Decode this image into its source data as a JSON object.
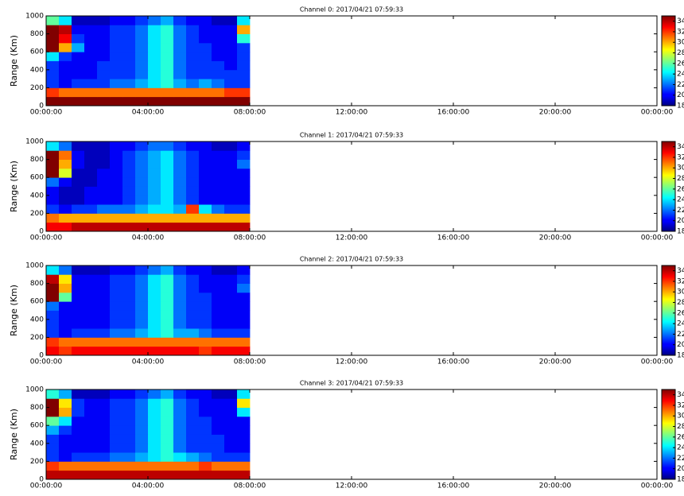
{
  "chart_data": [
    {
      "type": "heatmap",
      "title": "Channel 0: 2017/04/21 07:59:33",
      "ylabel": "Range (Km)",
      "colormap": "jet",
      "xlim": [
        0,
        24
      ],
      "xticks": [
        {
          "value": 0,
          "label": "00:00:00"
        },
        {
          "value": 4,
          "label": "04:00:00"
        },
        {
          "value": 8,
          "label": "08:00:00"
        },
        {
          "value": 12,
          "label": "12:00:00"
        },
        {
          "value": 16,
          "label": "16:00:00"
        },
        {
          "value": 20,
          "label": "20:00:00"
        },
        {
          "value": 24,
          "label": "00:00:00"
        }
      ],
      "ylim": [
        0,
        1000
      ],
      "yticks": [
        0,
        200,
        400,
        600,
        800,
        1000
      ],
      "clim": [
        18,
        35
      ],
      "colorbar_ticks": [
        18,
        20,
        22,
        24,
        26,
        28,
        30,
        32,
        34
      ],
      "x_bins": [
        0,
        0.5,
        1,
        1.5,
        2,
        2.5,
        3,
        3.5,
        4,
        4.5,
        5,
        5.5,
        6,
        6.5,
        7,
        7.5,
        8
      ],
      "y_bins": [
        0,
        100,
        200,
        300,
        400,
        500,
        600,
        700,
        800,
        900,
        1000
      ],
      "values": [
        [
          35,
          35,
          35,
          35,
          35,
          35,
          35,
          35,
          35,
          35,
          35,
          35,
          35,
          35,
          35,
          35
        ],
        [
          32,
          31,
          31,
          31,
          31,
          31,
          31,
          31,
          31,
          31,
          31,
          31,
          31,
          31,
          32,
          32
        ],
        [
          21,
          20,
          21,
          21,
          21,
          22,
          22,
          23,
          24,
          25,
          23,
          22,
          23,
          22,
          21,
          21
        ],
        [
          21,
          20,
          20,
          20,
          21,
          21,
          21,
          22,
          24,
          25,
          22,
          21,
          21,
          21,
          21,
          21
        ],
        [
          21,
          20,
          20,
          20,
          21,
          21,
          21,
          22,
          24,
          25,
          22,
          21,
          21,
          21,
          20,
          21
        ],
        [
          24,
          21,
          20,
          20,
          20,
          21,
          21,
          22,
          24,
          25,
          22,
          21,
          21,
          20,
          20,
          21
        ],
        [
          35,
          30,
          23,
          20,
          20,
          21,
          21,
          22,
          24,
          25,
          22,
          21,
          21,
          20,
          20,
          21
        ],
        [
          35,
          33,
          21,
          20,
          20,
          21,
          21,
          22,
          24,
          25,
          22,
          21,
          20,
          20,
          20,
          25
        ],
        [
          35,
          34,
          20,
          20,
          20,
          21,
          21,
          22,
          24,
          25,
          22,
          21,
          20,
          20,
          20,
          30
        ],
        [
          26,
          24,
          19,
          19,
          19,
          20,
          20,
          21,
          22,
          23,
          21,
          20,
          20,
          19,
          19,
          24
        ]
      ]
    },
    {
      "type": "heatmap",
      "title": "Channel 1: 2017/04/21 07:59:33",
      "ylabel": "Range (Km)",
      "colormap": "jet",
      "xlim": [
        0,
        24
      ],
      "xticks": [
        {
          "value": 0,
          "label": "00:00:00"
        },
        {
          "value": 4,
          "label": "04:00:00"
        },
        {
          "value": 8,
          "label": "08:00:00"
        },
        {
          "value": 12,
          "label": "12:00:00"
        },
        {
          "value": 16,
          "label": "16:00:00"
        },
        {
          "value": 20,
          "label": "20:00:00"
        },
        {
          "value": 24,
          "label": "00:00:00"
        }
      ],
      "ylim": [
        0,
        1000
      ],
      "yticks": [
        0,
        200,
        400,
        600,
        800,
        1000
      ],
      "clim": [
        18,
        35
      ],
      "colorbar_ticks": [
        18,
        20,
        22,
        24,
        26,
        28,
        30,
        32,
        34
      ],
      "x_bins": [
        0,
        0.5,
        1,
        1.5,
        2,
        2.5,
        3,
        3.5,
        4,
        4.5,
        5,
        5.5,
        6,
        6.5,
        7,
        7.5,
        8
      ],
      "y_bins": [
        0,
        100,
        200,
        300,
        400,
        500,
        600,
        700,
        800,
        900,
        1000
      ],
      "values": [
        [
          33,
          33,
          34,
          34,
          34,
          34,
          34,
          34,
          34,
          34,
          34,
          34,
          34,
          34,
          34,
          34
        ],
        [
          31,
          30,
          30,
          30,
          30,
          30,
          30,
          30,
          30,
          30,
          30,
          30,
          30,
          30,
          30,
          30
        ],
        [
          21,
          20,
          21,
          21,
          22,
          22,
          22,
          23,
          24,
          24,
          23,
          32,
          24,
          22,
          21,
          21
        ],
        [
          20,
          19,
          19,
          20,
          20,
          20,
          21,
          22,
          23,
          24,
          22,
          21,
          20,
          20,
          20,
          20
        ],
        [
          20,
          19,
          19,
          20,
          20,
          20,
          21,
          22,
          23,
          24,
          22,
          21,
          20,
          20,
          20,
          20
        ],
        [
          22,
          20,
          19,
          19,
          20,
          20,
          21,
          22,
          23,
          24,
          22,
          21,
          20,
          20,
          20,
          20
        ],
        [
          35,
          28,
          19,
          19,
          20,
          20,
          21,
          22,
          23,
          24,
          22,
          21,
          20,
          20,
          20,
          20
        ],
        [
          35,
          30,
          20,
          19,
          19,
          20,
          21,
          22,
          23,
          24,
          22,
          21,
          20,
          20,
          20,
          22
        ],
        [
          35,
          31,
          20,
          19,
          19,
          20,
          21,
          22,
          23,
          24,
          22,
          21,
          20,
          20,
          20,
          21
        ],
        [
          24,
          22,
          19,
          19,
          19,
          20,
          20,
          21,
          22,
          22,
          21,
          20,
          20,
          19,
          19,
          20
        ]
      ]
    },
    {
      "type": "heatmap",
      "title": "Channel 2: 2017/04/21 07:59:33",
      "ylabel": "Range (Km)",
      "colormap": "jet",
      "xlim": [
        0,
        24
      ],
      "xticks": [
        {
          "value": 0,
          "label": "00:00:00"
        },
        {
          "value": 4,
          "label": "04:00:00"
        },
        {
          "value": 8,
          "label": "08:00:00"
        },
        {
          "value": 12,
          "label": "12:00:00"
        },
        {
          "value": 16,
          "label": "16:00:00"
        },
        {
          "value": 20,
          "label": "20:00:00"
        },
        {
          "value": 24,
          "label": "00:00:00"
        }
      ],
      "ylim": [
        0,
        1000
      ],
      "yticks": [
        0,
        200,
        400,
        600,
        800,
        1000
      ],
      "clim": [
        18,
        35
      ],
      "colorbar_ticks": [
        18,
        20,
        22,
        24,
        26,
        28,
        30,
        32,
        34
      ],
      "x_bins": [
        0,
        0.5,
        1,
        1.5,
        2,
        2.5,
        3,
        3.5,
        4,
        4.5,
        5,
        5.5,
        6,
        6.5,
        7,
        7.5,
        8
      ],
      "y_bins": [
        0,
        100,
        200,
        300,
        400,
        500,
        600,
        700,
        800,
        900,
        1000
      ],
      "values": [
        [
          33,
          32,
          33,
          33,
          33,
          33,
          33,
          33,
          33,
          33,
          33,
          33,
          32,
          33,
          33,
          33
        ],
        [
          32,
          31,
          31,
          31,
          31,
          31,
          31,
          31,
          31,
          31,
          31,
          31,
          31,
          31,
          31,
          31
        ],
        [
          21,
          20,
          21,
          21,
          21,
          22,
          22,
          23,
          24,
          25,
          23,
          23,
          22,
          21,
          21,
          21
        ],
        [
          21,
          20,
          20,
          20,
          20,
          21,
          21,
          22,
          24,
          25,
          22,
          21,
          21,
          20,
          20,
          20
        ],
        [
          21,
          20,
          20,
          20,
          20,
          21,
          21,
          22,
          24,
          25,
          22,
          21,
          21,
          20,
          20,
          20
        ],
        [
          22,
          20,
          20,
          20,
          20,
          21,
          21,
          22,
          24,
          25,
          22,
          21,
          21,
          20,
          20,
          20
        ],
        [
          35,
          26,
          20,
          20,
          20,
          21,
          21,
          22,
          24,
          25,
          22,
          21,
          21,
          20,
          20,
          20
        ],
        [
          35,
          30,
          20,
          20,
          20,
          21,
          21,
          22,
          24,
          25,
          22,
          21,
          20,
          20,
          20,
          22
        ],
        [
          34,
          29,
          20,
          20,
          20,
          21,
          21,
          22,
          24,
          25,
          22,
          21,
          20,
          20,
          20,
          21
        ],
        [
          24,
          22,
          19,
          19,
          19,
          20,
          20,
          21,
          22,
          23,
          21,
          20,
          20,
          19,
          19,
          20
        ]
      ]
    },
    {
      "type": "heatmap",
      "title": "Channel 3: 2017/04/21 07:59:33",
      "ylabel": "Range (Km)",
      "colormap": "jet",
      "xlim": [
        0,
        24
      ],
      "xticks": [
        {
          "value": 0,
          "label": "00:00:00"
        },
        {
          "value": 4,
          "label": "04:00:00"
        },
        {
          "value": 8,
          "label": "08:00:00"
        },
        {
          "value": 12,
          "label": "12:00:00"
        },
        {
          "value": 16,
          "label": "16:00:00"
        },
        {
          "value": 20,
          "label": "20:00:00"
        },
        {
          "value": 24,
          "label": "00:00:00"
        }
      ],
      "ylim": [
        0,
        1000
      ],
      "yticks": [
        0,
        200,
        400,
        600,
        800,
        1000
      ],
      "clim": [
        18,
        35
      ],
      "colorbar_ticks": [
        18,
        20,
        22,
        24,
        26,
        28,
        30,
        32,
        34
      ],
      "x_bins": [
        0,
        0.5,
        1,
        1.5,
        2,
        2.5,
        3,
        3.5,
        4,
        4.5,
        5,
        5.5,
        6,
        6.5,
        7,
        7.5,
        8
      ],
      "y_bins": [
        0,
        100,
        200,
        300,
        400,
        500,
        600,
        700,
        800,
        900,
        1000
      ],
      "values": [
        [
          34,
          34,
          34,
          34,
          34,
          34,
          34,
          34,
          34,
          34,
          34,
          34,
          34,
          34,
          34,
          34
        ],
        [
          32,
          31,
          31,
          31,
          31,
          31,
          31,
          31,
          31,
          31,
          31,
          31,
          32,
          31,
          31,
          31
        ],
        [
          21,
          20,
          21,
          21,
          21,
          22,
          22,
          23,
          24,
          25,
          24,
          23,
          22,
          21,
          21,
          21
        ],
        [
          21,
          20,
          20,
          20,
          20,
          21,
          21,
          22,
          24,
          25,
          22,
          21,
          21,
          21,
          20,
          20
        ],
        [
          21,
          20,
          20,
          20,
          20,
          21,
          21,
          22,
          24,
          25,
          22,
          21,
          21,
          21,
          20,
          20
        ],
        [
          23,
          21,
          20,
          20,
          20,
          21,
          21,
          22,
          24,
          25,
          22,
          21,
          21,
          20,
          20,
          20
        ],
        [
          26,
          24,
          20,
          20,
          20,
          21,
          21,
          22,
          24,
          25,
          22,
          21,
          21,
          20,
          20,
          20
        ],
        [
          35,
          30,
          21,
          20,
          20,
          21,
          21,
          22,
          24,
          25,
          22,
          21,
          20,
          20,
          20,
          24
        ],
        [
          35,
          29,
          21,
          20,
          20,
          21,
          21,
          22,
          24,
          25,
          22,
          21,
          20,
          20,
          20,
          29
        ],
        [
          25,
          23,
          19,
          19,
          19,
          20,
          20,
          21,
          22,
          23,
          21,
          20,
          20,
          19,
          19,
          24
        ]
      ]
    }
  ]
}
